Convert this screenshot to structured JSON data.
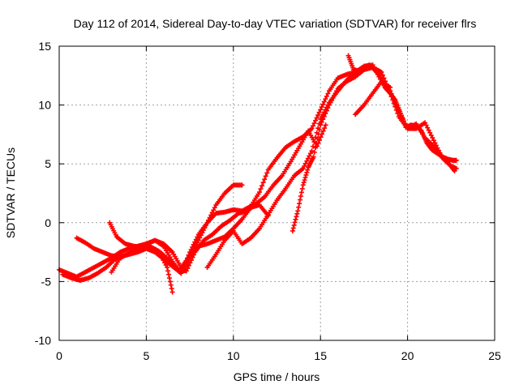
{
  "chart_data": {
    "type": "scatter",
    "title": "Day 112 of 2014, Sidereal Day-to-day VTEC variation (SDTVAR) for receiver flrs",
    "xlabel": "GPS time / hours",
    "ylabel": "SDTVAR / TECUs",
    "xlim": [
      0,
      25
    ],
    "ylim": [
      -10,
      15
    ],
    "xticks": [
      0,
      5,
      10,
      15,
      20,
      25
    ],
    "yticks": [
      -10,
      -5,
      0,
      5,
      10,
      15
    ],
    "grid": true,
    "marker": "plus",
    "color": "#ff0000",
    "series": [
      {
        "x": [
          0.0,
          0.5,
          1.0,
          1.5,
          2.0,
          2.5,
          3.0,
          3.5,
          4.0,
          4.5,
          5.0,
          5.5,
          6.0,
          6.5,
          7.0,
          7.5,
          8.0,
          8.5,
          9.0,
          9.5,
          10.0,
          10.5
        ],
        "y": [
          -4.0,
          -4.3,
          -4.6,
          -4.2,
          -3.8,
          -3.4,
          -3.0,
          -2.5,
          -2.2,
          -2.0,
          -1.8,
          -1.5,
          -1.8,
          -2.5,
          -3.8,
          -2.8,
          -1.5,
          0.0,
          1.5,
          2.5,
          3.2,
          3.2
        ]
      },
      {
        "x": [
          0.2,
          0.7,
          1.2,
          1.7,
          2.2,
          2.7,
          3.2,
          3.7,
          4.2,
          4.7,
          5.2,
          5.7,
          6.2,
          6.5
        ],
        "y": [
          -4.4,
          -4.7,
          -4.9,
          -4.7,
          -4.3,
          -3.8,
          -3.1,
          -2.8,
          -2.5,
          -2.2,
          -2.0,
          -2.4,
          -3.8,
          -5.9
        ]
      },
      {
        "x": [
          1.0,
          1.5,
          2.0,
          2.5,
          3.0,
          3.5,
          4.0,
          4.5,
          5.0,
          5.5,
          6.0,
          6.5,
          7.0,
          7.5,
          8.0,
          8.5,
          9.0,
          9.5,
          10.0,
          10.5,
          11.0,
          11.5,
          12.0
        ],
        "y": [
          -1.3,
          -1.7,
          -2.2,
          -2.5,
          -2.8,
          -2.9,
          -2.7,
          -2.5,
          -2.2,
          -2.5,
          -3.1,
          -3.7,
          -4.3,
          -3.0,
          -2.0,
          -1.8,
          -1.5,
          -1.2,
          -0.5,
          0.3,
          1.3,
          1.5,
          0.6
        ]
      },
      {
        "x": [
          2.9,
          3.3,
          3.8,
          4.3,
          4.8,
          5.3,
          5.8,
          6.3,
          6.8,
          7.3,
          7.8,
          8.3,
          8.8,
          9.3,
          9.8,
          10.3,
          10.8,
          11.3,
          11.8,
          12.3,
          12.8,
          13.3,
          13.8,
          14.3,
          14.8,
          15.3
        ],
        "y": [
          0.0,
          -1.2,
          -1.8,
          -2.0,
          -2.1,
          -2.2,
          -2.5,
          -3.2,
          -4.0,
          -4.1,
          -2.5,
          -1.5,
          -1.0,
          -0.3,
          0.2,
          0.8,
          1.0,
          1.6,
          2.2,
          3.2,
          4.0,
          5.2,
          6.5,
          7.8,
          6.5,
          8.3
        ]
      },
      {
        "x": [
          3.0,
          3.5,
          4.0,
          4.5,
          5.0,
          5.5,
          6.0,
          6.5,
          7.0,
          7.5,
          8.0,
          8.5,
          9.0,
          9.5,
          10.0,
          10.5,
          11.0,
          11.5,
          12.0,
          12.5,
          13.0,
          13.5,
          14.0,
          14.5,
          15.0,
          15.5,
          16.0,
          16.5,
          17.0,
          17.5,
          18.0
        ],
        "y": [
          -4.2,
          -3.0,
          -2.6,
          -2.2,
          -1.8,
          -1.5,
          -2.0,
          -3.3,
          -4.3,
          -2.5,
          -1.0,
          0.0,
          0.8,
          0.9,
          1.1,
          1.0,
          1.4,
          2.6,
          4.5,
          5.5,
          6.4,
          6.9,
          7.3,
          8.0,
          9.6,
          11.2,
          12.3,
          12.6,
          12.8,
          13.1,
          13.2
        ]
      },
      {
        "x": [
          8.5,
          9.0,
          9.5,
          10.0,
          10.5,
          11.0,
          11.5,
          12.0,
          12.5,
          13.0,
          13.5,
          14.0,
          14.5,
          15.0,
          15.5,
          16.0,
          16.5,
          17.0,
          17.5,
          18.0,
          18.5,
          19.0
        ],
        "y": [
          -3.8,
          -2.7,
          -1.5,
          -0.7,
          -1.8,
          -1.3,
          -0.5,
          0.7,
          1.9,
          2.9,
          4.0,
          4.6,
          6.1,
          8.8,
          10.2,
          11.2,
          12.1,
          12.8,
          13.3,
          13.4,
          12.0,
          11.5
        ]
      },
      {
        "x": [
          13.4,
          13.7,
          14.0,
          14.3,
          14.6,
          15.0,
          15.5,
          16.0,
          16.5,
          17.0,
          17.5,
          18.0,
          18.5,
          19.0,
          19.5,
          20.0,
          20.5,
          21.0,
          21.5,
          22.0,
          22.5,
          22.7
        ],
        "y": [
          -0.7,
          1.0,
          3.2,
          4.7,
          5.6,
          8.3,
          10.0,
          11.4,
          12.0,
          12.4,
          13.0,
          13.2,
          12.8,
          11.0,
          9.0,
          8.0,
          8.4,
          7.2,
          6.5,
          5.6,
          4.8,
          4.4
        ]
      },
      {
        "x": [
          16.6,
          16.9,
          17.2,
          17.5,
          17.8,
          18.1,
          18.4,
          18.7,
          19.0,
          19.3,
          19.6,
          19.9,
          20.2,
          20.5,
          20.8,
          21.1,
          21.4,
          21.7,
          22.0,
          22.3,
          22.6,
          22.8
        ],
        "y": [
          14.2,
          13.0,
          12.9,
          13.2,
          13.4,
          13.0,
          12.5,
          11.5,
          11.0,
          10.4,
          9.3,
          8.1,
          8.3,
          8.2,
          7.8,
          6.8,
          6.2,
          5.9,
          5.6,
          5.4,
          5.3,
          5.3
        ]
      },
      {
        "x": [
          17.0,
          17.5,
          18.0,
          18.5,
          19.0,
          19.5,
          20.0,
          20.5,
          21.0,
          21.5,
          22.0,
          22.5,
          22.8
        ],
        "y": [
          9.2,
          10.0,
          11.0,
          12.0,
          11.2,
          9.5,
          8.0,
          8.0,
          8.5,
          7.0,
          5.5,
          4.8,
          4.6
        ]
      }
    ]
  }
}
